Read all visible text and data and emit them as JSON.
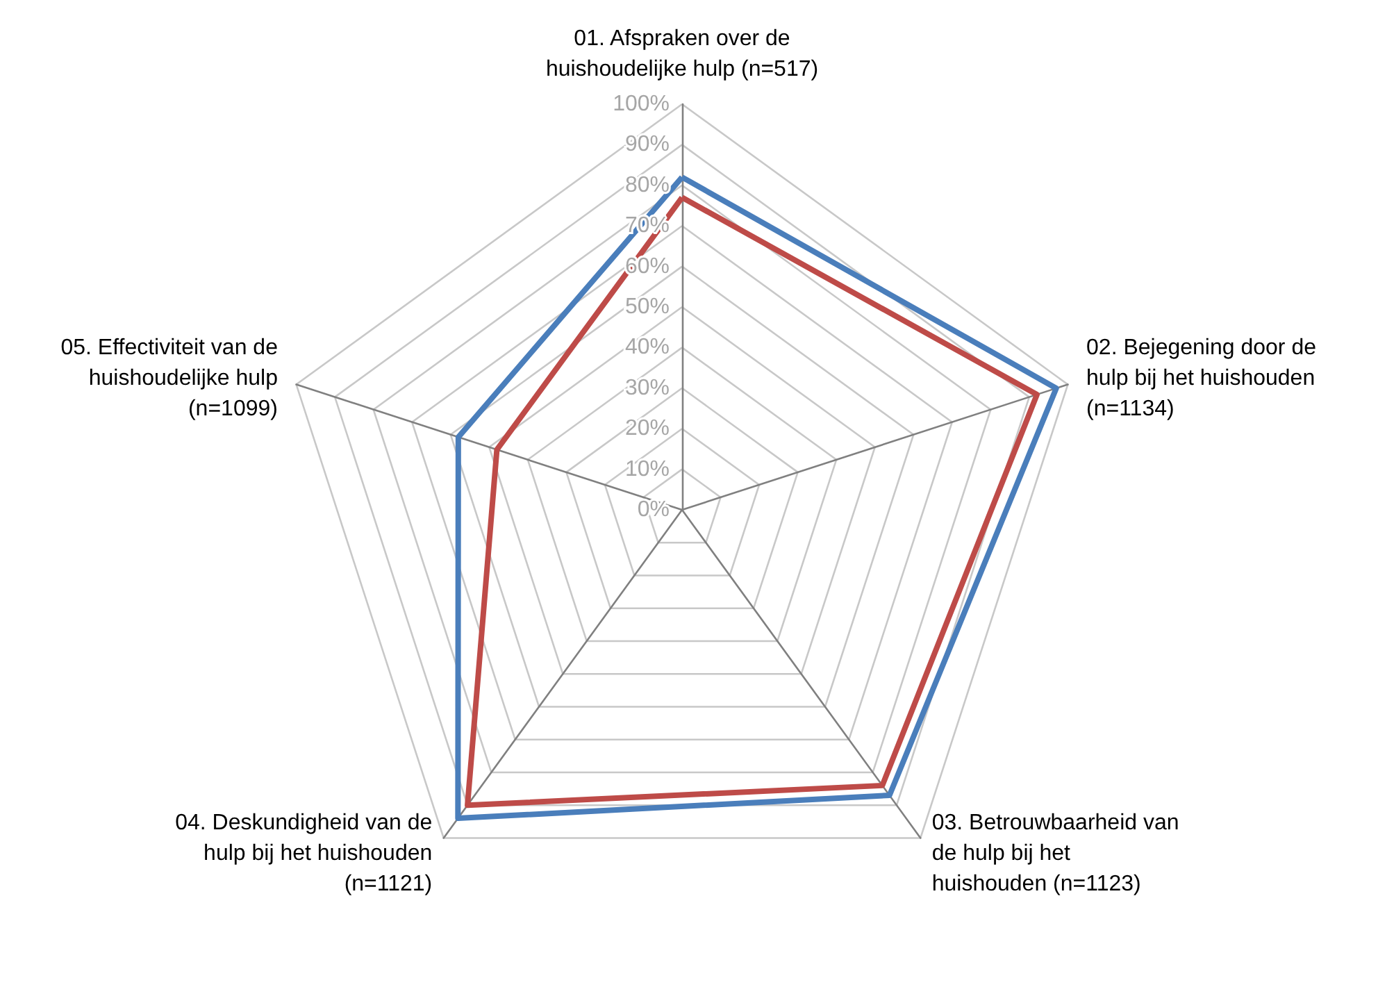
{
  "chart_data": {
    "type": "radar",
    "categories": [
      "01. Afspraken over de huishoudelijke hulp (n=517)",
      "02. Bejegening door de hulp bij het huishouden (n=1134)",
      "03. Betrouwbaarheid van de hulp bij het huishouden (n=1123)",
      "04. Deskundigheid van de hulp bij het huishouden (n=1121)",
      "05. Effectiviteit van de huishoudelijke hulp (n=1099)"
    ],
    "series": [
      {
        "color": "#4a7ebb",
        "values": [
          82,
          97,
          87,
          94,
          58
        ]
      },
      {
        "color": "#be4b48",
        "values": [
          77,
          92,
          84,
          90,
          48
        ]
      }
    ],
    "ylim": [
      0,
      100
    ],
    "yticks": [
      {
        "value": 0,
        "label": "0%"
      },
      {
        "value": 10,
        "label": "10%"
      },
      {
        "value": 20,
        "label": "20%"
      },
      {
        "value": 30,
        "label": "30%"
      },
      {
        "value": 40,
        "label": "40%"
      },
      {
        "value": 50,
        "label": "50%"
      },
      {
        "value": 60,
        "label": "60%"
      },
      {
        "value": 70,
        "label": "70%"
      },
      {
        "value": 80,
        "label": "80%"
      },
      {
        "value": 90,
        "label": "90%"
      },
      {
        "value": 100,
        "label": "100%"
      }
    ],
    "grid": true,
    "marker": "none",
    "line_style": "solid"
  }
}
